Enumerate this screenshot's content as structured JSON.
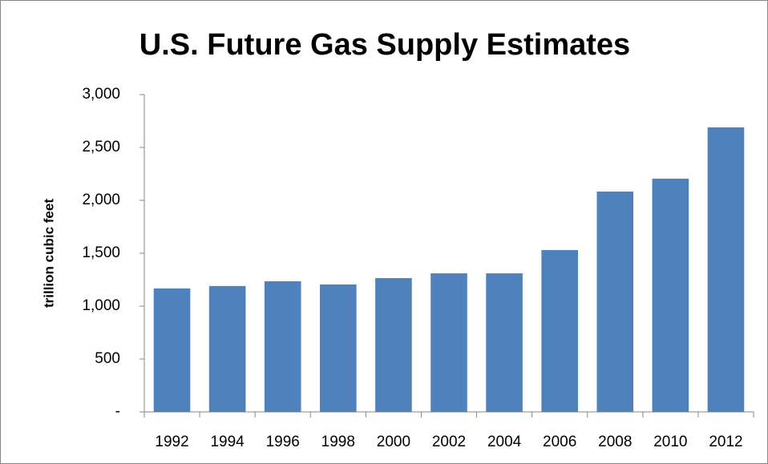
{
  "chart_data": {
    "type": "bar",
    "title": "U.S. Future Gas Supply Estimates",
    "y_label": "trillion cubic feet",
    "categories": [
      "1992",
      "1994",
      "1996",
      "1998",
      "2000",
      "2002",
      "2004",
      "2006",
      "2008",
      "2010",
      "2012"
    ],
    "values": [
      1167,
      1190,
      1235,
      1205,
      1265,
      1310,
      1310,
      1530,
      2083,
      2205,
      2690
    ],
    "color": "#4f81bd",
    "ylim": [
      0,
      3000
    ],
    "yticks": [
      {
        "value": 0,
        "label": "-"
      },
      500,
      {
        "value": 1000,
        "label": "1,000"
      },
      {
        "value": 1500,
        "label": "1,500"
      },
      {
        "value": 2000,
        "label": "2,000"
      },
      {
        "value": 2500,
        "label": "2,500"
      },
      {
        "value": 3000,
        "label": "3,000"
      }
    ],
    "grid": false
  }
}
